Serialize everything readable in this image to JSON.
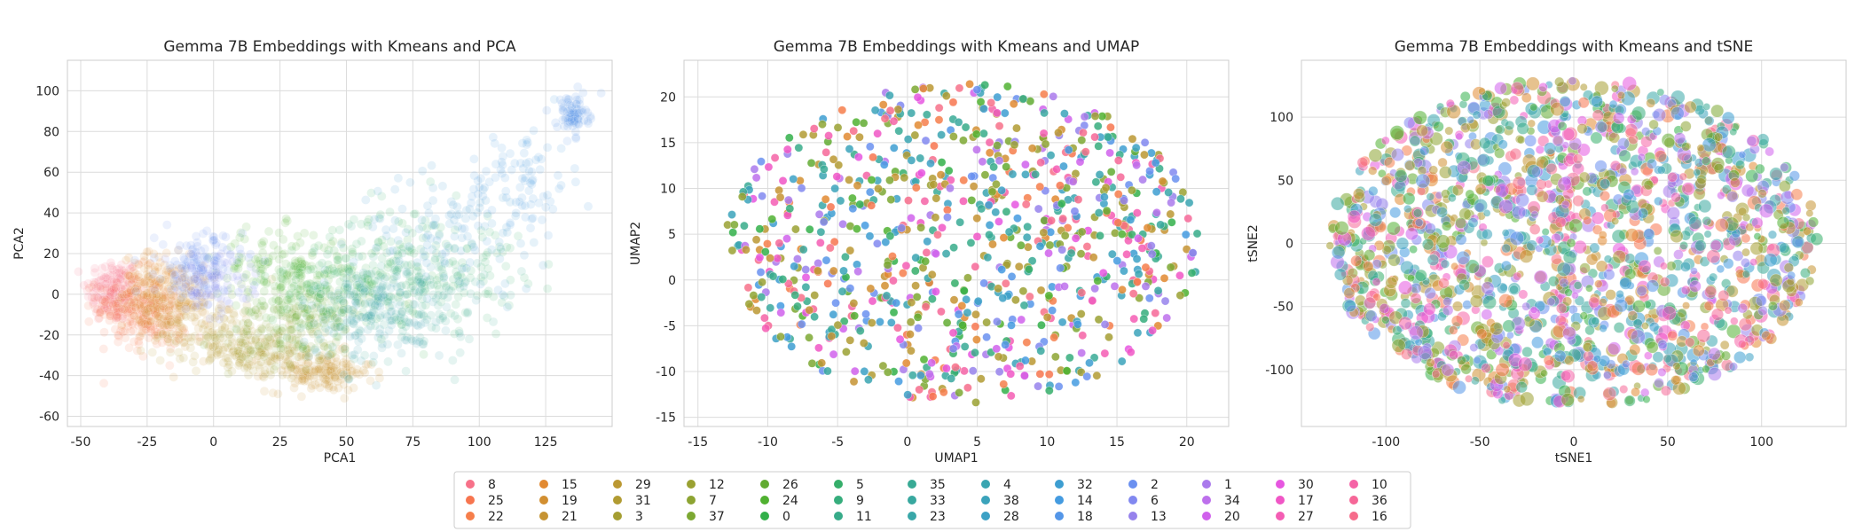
{
  "chart_data": [
    {
      "type": "scatter",
      "title": "Gemma 7B Embeddings with Kmeans and PCA",
      "xlabel": "PCA1",
      "ylabel": "PCA2",
      "xlim": [
        -55,
        150
      ],
      "ylim": [
        -65,
        115
      ],
      "xticks": [
        -50,
        -25,
        0,
        25,
        50,
        75,
        100,
        125
      ],
      "yticks": [
        -60,
        -40,
        -20,
        0,
        20,
        40,
        60,
        80,
        100
      ],
      "grid": true,
      "point_alpha": 0.13,
      "clusters": [
        {
          "label": "8",
          "cx": -38,
          "cy": 2,
          "sx": 5,
          "sy": 8,
          "n": 160
        },
        {
          "label": "25",
          "cx": -32,
          "cy": -6,
          "sx": 6,
          "sy": 9,
          "n": 140
        },
        {
          "label": "22",
          "cx": -22,
          "cy": -12,
          "sx": 6,
          "sy": 8,
          "n": 120
        },
        {
          "label": "15",
          "cx": -22,
          "cy": 2,
          "sx": 6,
          "sy": 9,
          "n": 150
        },
        {
          "label": "19",
          "cx": -12,
          "cy": -6,
          "sx": 6,
          "sy": 9,
          "n": 120
        },
        {
          "label": "21",
          "cx": 40,
          "cy": -38,
          "sx": 10,
          "sy": 5,
          "n": 170
        },
        {
          "label": "29",
          "cx": 2,
          "cy": -20,
          "sx": 12,
          "sy": 8,
          "n": 110
        },
        {
          "label": "31",
          "cx": 15,
          "cy": -30,
          "sx": 10,
          "sy": 6,
          "n": 100
        },
        {
          "label": "7",
          "cx": 30,
          "cy": -20,
          "sx": 12,
          "sy": 8,
          "n": 110
        },
        {
          "label": "26",
          "cx": 35,
          "cy": -8,
          "sx": 12,
          "sy": 8,
          "n": 130
        },
        {
          "label": "24",
          "cx": 25,
          "cy": 12,
          "sx": 12,
          "sy": 10,
          "n": 150
        },
        {
          "label": "0",
          "cx": 50,
          "cy": 5,
          "sx": 14,
          "sy": 12,
          "n": 160
        },
        {
          "label": "5",
          "cx": 80,
          "cy": 15,
          "sx": 18,
          "sy": 14,
          "n": 180
        },
        {
          "label": "35",
          "cx": 70,
          "cy": -5,
          "sx": 16,
          "sy": 14,
          "n": 170
        },
        {
          "label": "4",
          "cx": 60,
          "cy": -10,
          "sx": 14,
          "sy": 12,
          "n": 130
        },
        {
          "label": "32",
          "cx": 90,
          "cy": 30,
          "sx": 18,
          "sy": 14,
          "n": 110
        },
        {
          "label": "14",
          "cx": 115,
          "cy": 55,
          "sx": 10,
          "sy": 14,
          "n": 90
        },
        {
          "label": "18",
          "cx": 135,
          "cy": 88,
          "sx": 3,
          "sy": 5,
          "n": 80
        },
        {
          "label": "2",
          "cx": -5,
          "cy": 15,
          "sx": 8,
          "sy": 8,
          "n": 120
        },
        {
          "label": "6",
          "cx": -2,
          "cy": 5,
          "sx": 8,
          "sy": 7,
          "n": 100
        }
      ]
    },
    {
      "type": "scatter",
      "title": "Gemma 7B Embeddings with Kmeans and UMAP",
      "xlabel": "UMAP1",
      "ylabel": "UMAP2",
      "xlim": [
        -16,
        23
      ],
      "ylim": [
        -16,
        24
      ],
      "xticks": [
        -15,
        -10,
        -5,
        0,
        5,
        10,
        15,
        20
      ],
      "yticks": [
        -15,
        -10,
        -5,
        0,
        5,
        10,
        15,
        20
      ],
      "grid": true,
      "point_alpha": 0.85,
      "center": [
        4,
        4
      ],
      "radius": [
        17,
        17.5
      ],
      "n_points": 950
    },
    {
      "type": "scatter",
      "title": "Gemma 7B Embeddings with Kmeans and tSNE",
      "xlabel": "tSNE1",
      "ylabel": "tSNE2",
      "xlim": [
        -145,
        145
      ],
      "ylim": [
        -145,
        145
      ],
      "xticks": [
        -100,
        -50,
        0,
        50,
        100
      ],
      "yticks": [
        -100,
        -50,
        0,
        50,
        100
      ],
      "grid": true,
      "point_alpha": 0.55,
      "center": [
        0,
        0
      ],
      "radius": [
        130,
        130
      ],
      "n_points": 1700
    }
  ],
  "legend": {
    "placement": "bottom-center",
    "columns": [
      [
        {
          "label": "8",
          "color": "#f77189"
        },
        {
          "label": "25",
          "color": "#f7754f"
        },
        {
          "label": "22",
          "color": "#f67e4b"
        }
      ],
      [
        {
          "label": "15",
          "color": "#e28a31"
        },
        {
          "label": "19",
          "color": "#d28f31"
        },
        {
          "label": "21",
          "color": "#c69332"
        }
      ],
      [
        {
          "label": "29",
          "color": "#bb9832"
        },
        {
          "label": "31",
          "color": "#b19b32"
        },
        {
          "label": "3",
          "color": "#a59e32"
        }
      ],
      [
        {
          "label": "12",
          "color": "#9aa132"
        },
        {
          "label": "7",
          "color": "#8da432"
        },
        {
          "label": "37",
          "color": "#7ca832"
        }
      ],
      [
        {
          "label": "26",
          "color": "#62ab32"
        },
        {
          "label": "24",
          "color": "#50b131"
        },
        {
          "label": "0",
          "color": "#33b04a"
        }
      ],
      [
        {
          "label": "5",
          "color": "#35ae6a"
        },
        {
          "label": "9",
          "color": "#36ad7c"
        },
        {
          "label": "11",
          "color": "#37ab89"
        }
      ],
      [
        {
          "label": "35",
          "color": "#38aa95"
        },
        {
          "label": "33",
          "color": "#38a89f"
        },
        {
          "label": "23",
          "color": "#39a7a8"
        }
      ],
      [
        {
          "label": "4",
          "color": "#3aa5b1"
        },
        {
          "label": "38",
          "color": "#3ba3bb"
        },
        {
          "label": "28",
          "color": "#3ca1c5"
        }
      ],
      [
        {
          "label": "32",
          "color": "#3d9ed1"
        },
        {
          "label": "14",
          "color": "#449be0"
        },
        {
          "label": "18",
          "color": "#5496e8"
        }
      ],
      [
        {
          "label": "2",
          "color": "#6a90f0"
        },
        {
          "label": "6",
          "color": "#8188f0"
        },
        {
          "label": "13",
          "color": "#9682ec"
        }
      ],
      [
        {
          "label": "1",
          "color": "#aa7aec"
        },
        {
          "label": "34",
          "color": "#bd70ec"
        },
        {
          "label": "20",
          "color": "#d061ec"
        }
      ],
      [
        {
          "label": "30",
          "color": "#e656e0"
        },
        {
          "label": "17",
          "color": "#f056c6"
        },
        {
          "label": "27",
          "color": "#f45db4"
        }
      ],
      [
        {
          "label": "10",
          "color": "#f563a6"
        },
        {
          "label": "36",
          "color": "#f66798"
        },
        {
          "label": "16",
          "color": "#f66c8b"
        }
      ]
    ]
  }
}
